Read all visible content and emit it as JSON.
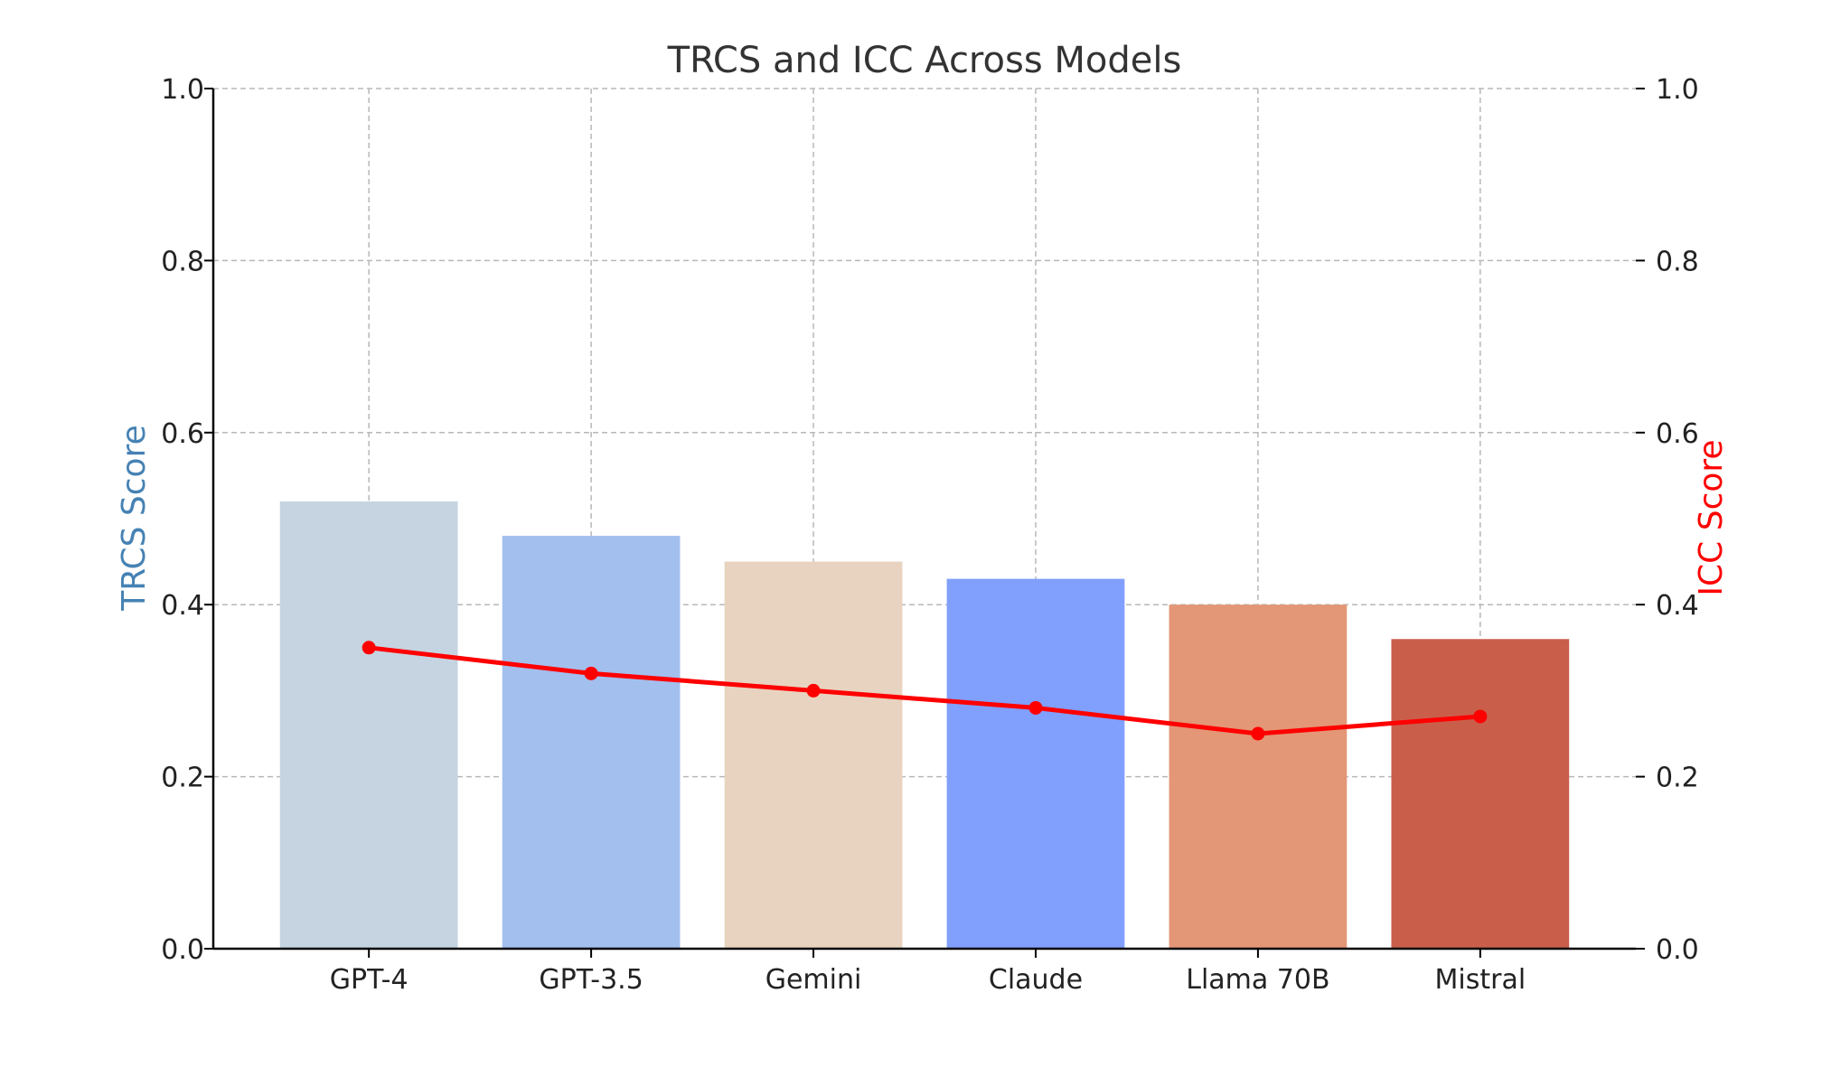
{
  "chart_data": {
    "type": "bar",
    "title": "TRCS and ICC Across Models",
    "categories": [
      "GPT-4",
      "GPT-3.5",
      "Gemini",
      "Claude",
      "Llama 70B",
      "Mistral"
    ],
    "series": [
      {
        "name": "TRCS Score",
        "type": "bar",
        "axis": "left",
        "values": [
          0.52,
          0.48,
          0.45,
          0.43,
          0.4,
          0.36
        ],
        "colors": [
          "#c6d4e1",
          "#a3bfee",
          "#e8d3c0",
          "#819ffc",
          "#e39776",
          "#c95f4b"
        ]
      },
      {
        "name": "ICC Score",
        "type": "line",
        "axis": "right",
        "values": [
          0.35,
          0.32,
          0.3,
          0.28,
          0.25,
          0.27
        ],
        "color": "#ff0000"
      }
    ],
    "ylabel_left": "TRCS Score",
    "ylabel_right": "ICC Score",
    "ylabel_left_color": "#4682b4",
    "ylabel_right_color": "#ff0000",
    "ylim_left": [
      0,
      1.0
    ],
    "ylim_right": [
      0,
      1.0
    ],
    "yticks": [
      "0.0",
      "0.2",
      "0.4",
      "0.6",
      "0.8",
      "1.0"
    ],
    "grid": true
  }
}
